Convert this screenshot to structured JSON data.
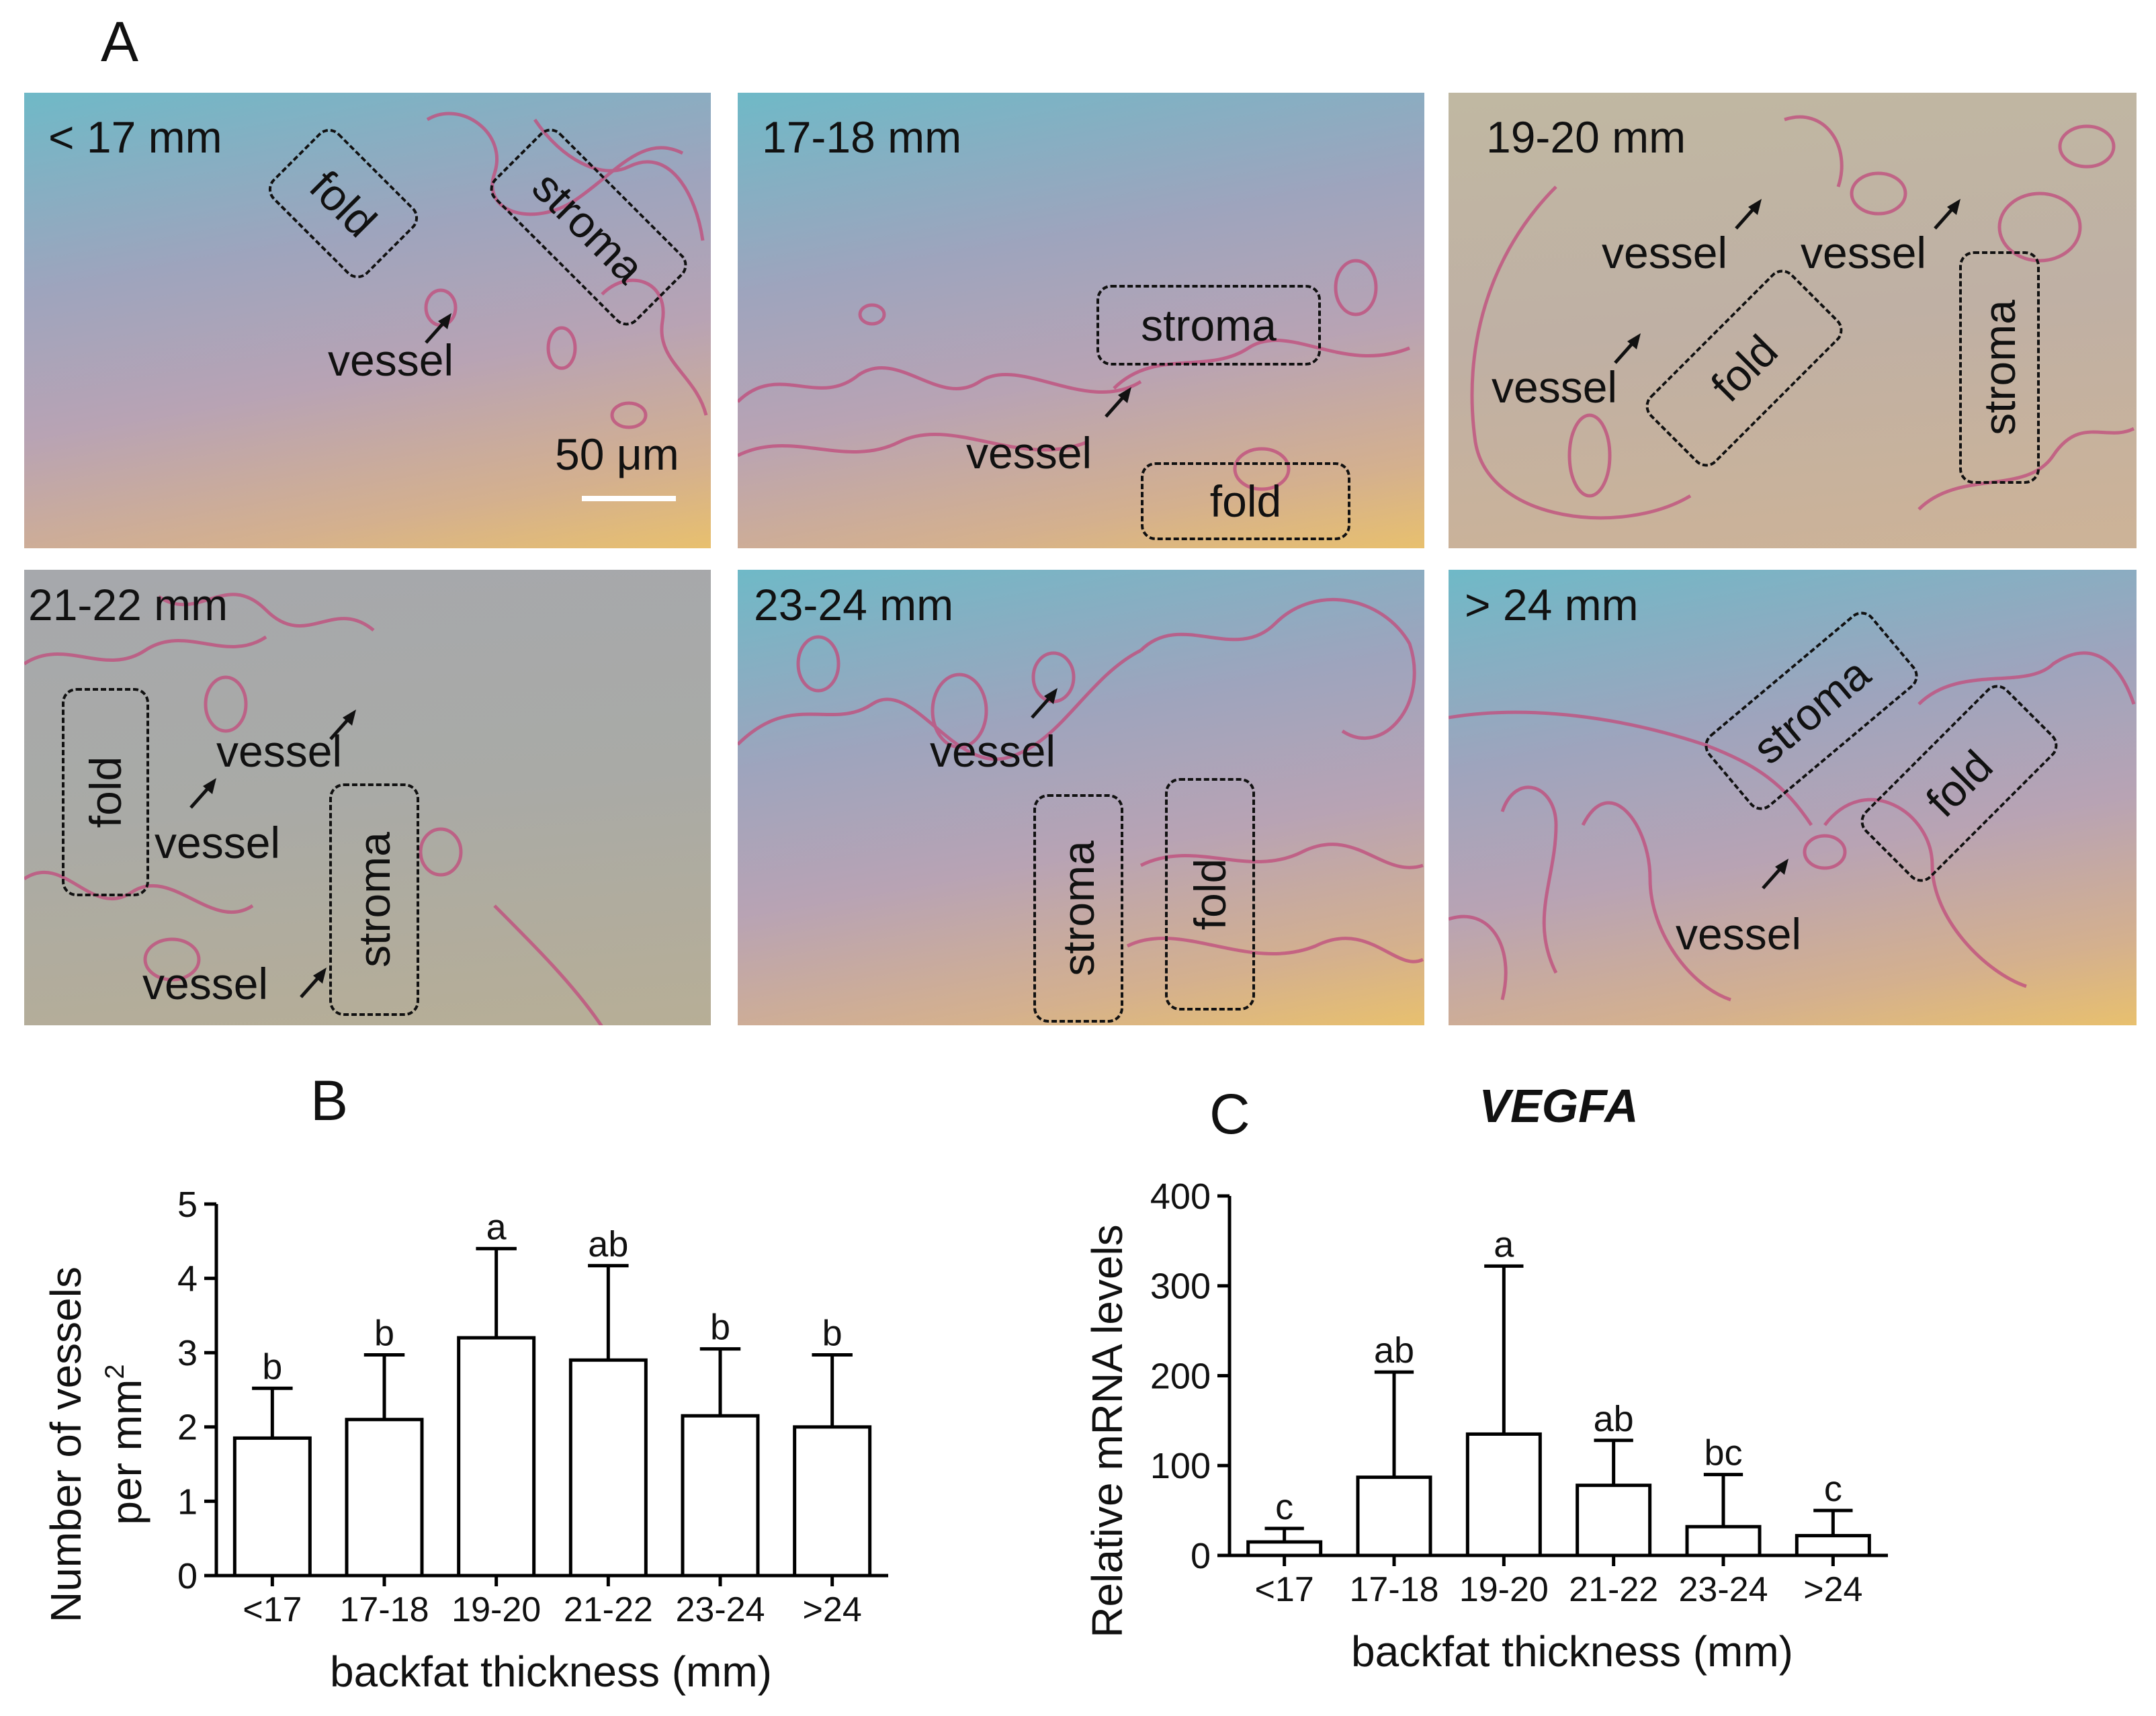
{
  "panels": {
    "A": "A",
    "B": "B",
    "C": "C"
  },
  "micrographs": [
    {
      "range": "< 17 mm",
      "labels": [
        "fold",
        "stroma",
        "vessel"
      ],
      "scale": "50 μm"
    },
    {
      "range": "17-18 mm",
      "labels": [
        "stroma",
        "vessel",
        "fold"
      ]
    },
    {
      "range": "19-20 mm",
      "labels": [
        "vessel",
        "vessel",
        "vessel",
        "fold",
        "stroma"
      ]
    },
    {
      "range": "21-22 mm",
      "labels": [
        "fold",
        "vessel",
        "vessel",
        "stroma",
        "vessel"
      ]
    },
    {
      "range": "23-24 mm",
      "labels": [
        "vessel",
        "stroma",
        "fold"
      ]
    },
    {
      "range": "> 24 mm",
      "labels": [
        "stroma",
        "fold",
        "vessel"
      ]
    }
  ],
  "chart_data": [
    {
      "type": "bar",
      "title": "",
      "categories": [
        "<17",
        "17-18",
        "19-20",
        "21-22",
        "23-24",
        ">24"
      ],
      "values": [
        1.85,
        2.1,
        3.2,
        2.9,
        2.15,
        2.0
      ],
      "errors": [
        0.67,
        0.87,
        1.2,
        1.27,
        0.9,
        0.97
      ],
      "letters": [
        "b",
        "b",
        "a",
        "ab",
        "b",
        "b"
      ],
      "xlabel": "backfat thickness (mm)",
      "ylabel_line1": "Number of vessels",
      "ylabel_line2": "per mm",
      "ylabel_sup": "2",
      "ylim": [
        0,
        5
      ],
      "yticks": [
        "0",
        "1",
        "2",
        "3",
        "4",
        "5"
      ]
    },
    {
      "type": "bar",
      "title": "VEGFA",
      "categories": [
        "<17",
        "17-18",
        "19-20",
        "21-22",
        "23-24",
        ">24"
      ],
      "values": [
        15,
        87,
        135,
        78,
        32,
        22
      ],
      "errors": [
        15,
        117,
        187,
        50,
        58,
        28
      ],
      "letters": [
        "c",
        "ab",
        "a",
        "ab",
        "bc",
        "c"
      ],
      "xlabel": "backfat thickness (mm)",
      "ylabel": "Relative mRNA levels",
      "ylim": [
        0,
        400
      ],
      "yticks": [
        "0",
        "100",
        "200",
        "300",
        "400"
      ]
    }
  ],
  "colors": {
    "bar_fill": "#ffffff",
    "bar_stroke": "#000000",
    "box_stroke": "#111111",
    "tissue": "#c0507e"
  }
}
